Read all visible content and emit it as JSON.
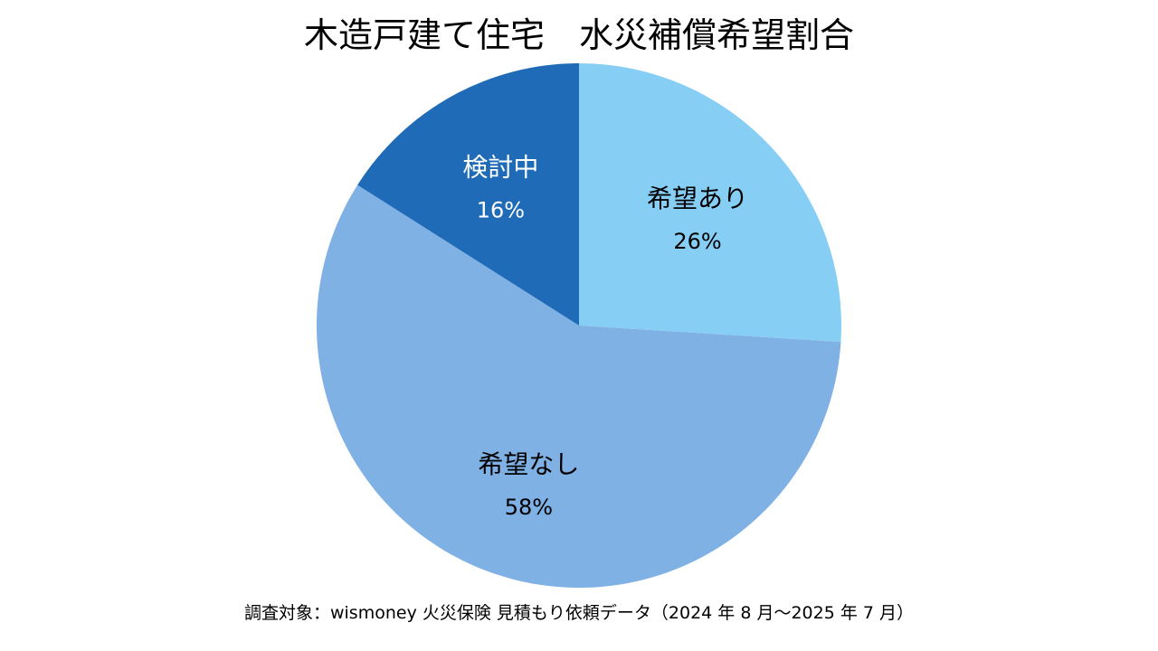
{
  "chart_data": {
    "type": "pie",
    "title": "木造戸建て住宅　水災補償希望割合",
    "slices": [
      {
        "label": "希望あり",
        "value": 26,
        "value_label": "26%",
        "color": "#87CEF5",
        "text_color": "#000000"
      },
      {
        "label": "希望なし",
        "value": 58,
        "value_label": "58%",
        "color": "#7FB1E5",
        "text_color": "#000000"
      },
      {
        "label": "検討中",
        "value": 16,
        "value_label": "16%",
        "color": "#1F6BB7",
        "text_color": "#ffffff"
      }
    ],
    "start_angle_deg": 0,
    "direction": "clockwise",
    "legend": "none",
    "note": "調査対象：wismoney 火災保険 見積もり依頼データ（2024 年 8 月～2025 年 7 月）"
  }
}
